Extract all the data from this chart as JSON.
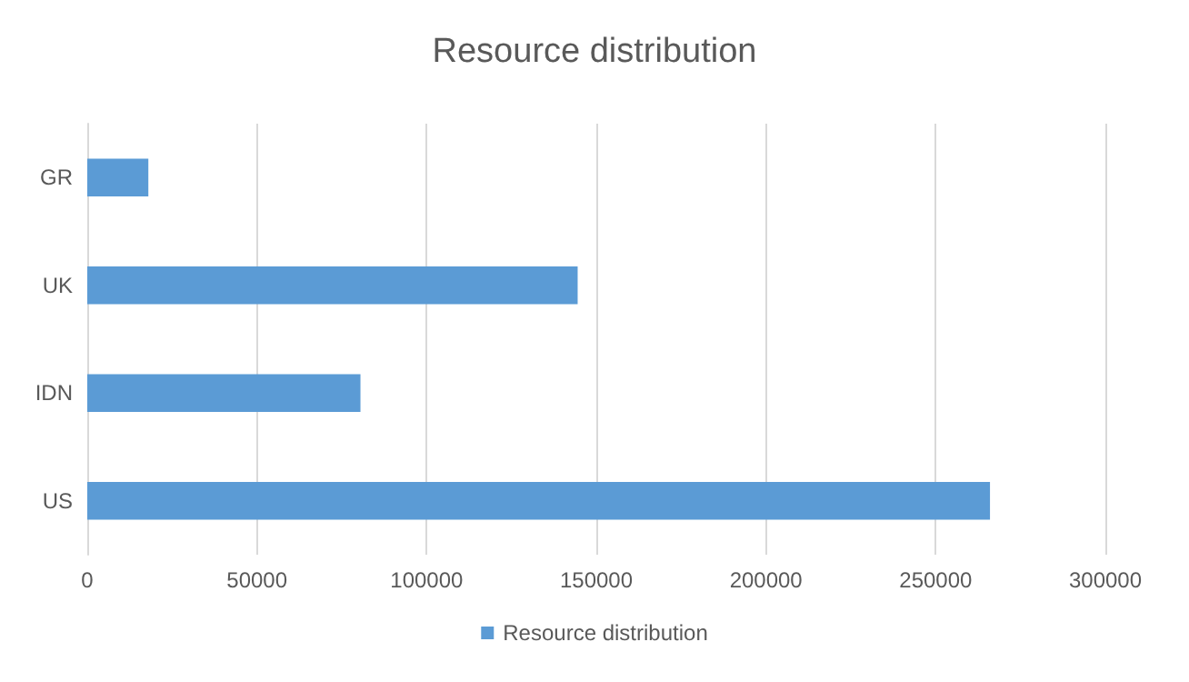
{
  "chart_data": {
    "type": "bar",
    "orientation": "horizontal",
    "title": "Resource distribution",
    "categories": [
      "GR",
      "UK",
      "IDN",
      "US"
    ],
    "series": [
      {
        "name": "Resource distribution",
        "color": "#5b9bd5",
        "values": [
          18000,
          144500,
          80500,
          266000
        ]
      }
    ],
    "xlim": [
      0,
      300000
    ],
    "xticks": [
      0,
      50000,
      100000,
      150000,
      200000,
      250000,
      300000
    ],
    "grid": "x",
    "legend": "bottom"
  }
}
